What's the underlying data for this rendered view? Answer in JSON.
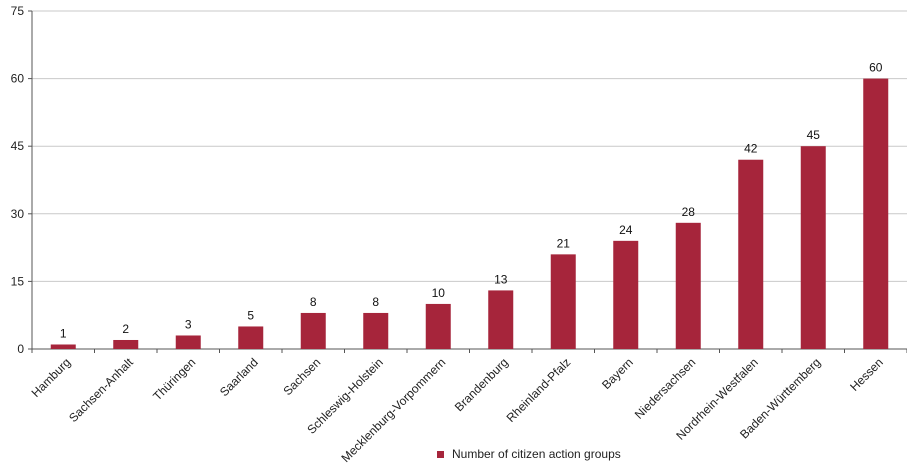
{
  "colors": {
    "bar": "#a6253b",
    "grid": "#c9c9c9",
    "axis": "#555555"
  },
  "chart_data": {
    "type": "bar",
    "title": "",
    "xlabel": "",
    "ylabel": "",
    "ylim": [
      0,
      75
    ],
    "yticks": [
      0,
      15,
      30,
      45,
      60,
      75
    ],
    "grid": true,
    "legend_position": "bottom",
    "categories": [
      "Hamburg",
      "Sachsen-Anhalt",
      "Thüringen",
      "Saarland",
      "Sachsen",
      "Schleswig-Holstein",
      "Mecklenburg-Vorpommern",
      "Brandenburg",
      "Rheinland-Pfalz",
      "Bayern",
      "Niedersachsen",
      "Nordrhein-Westfalen",
      "Baden-Württemberg",
      "Hessen"
    ],
    "series": [
      {
        "name": "Number of citizen action groups",
        "values": [
          1,
          2,
          3,
          5,
          8,
          8,
          10,
          13,
          21,
          24,
          28,
          42,
          45,
          60
        ]
      }
    ]
  }
}
